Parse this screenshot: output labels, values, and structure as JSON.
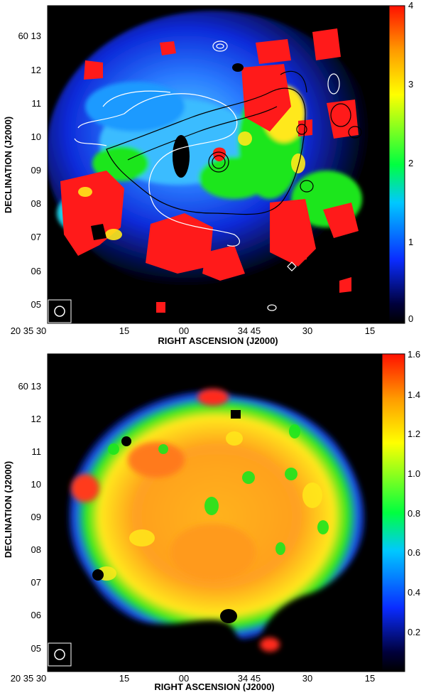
{
  "panels": [
    {
      "id": "top",
      "xlabel": "RIGHT ASCENSION (J2000)",
      "ylabel": "DECLINATION (J2000)",
      "x_ticks": [
        "20 35 30",
        "15",
        "00",
        "34 45",
        "30",
        "15"
      ],
      "y_ticks": [
        "60 13",
        "12",
        "11",
        "10",
        "09",
        "08",
        "07",
        "06",
        "05"
      ],
      "colorbar_ticks": [
        "4",
        "3",
        "2",
        "1",
        "0"
      ],
      "colormap": "rainbow",
      "contours": {
        "white": true,
        "black": true
      }
    },
    {
      "id": "bottom",
      "xlabel": "RIGHT ASCENSION (J2000)",
      "ylabel": "DECLINATION (J2000)",
      "x_ticks": [
        "20 35 30",
        "15",
        "00",
        "34 45",
        "30",
        "15"
      ],
      "y_ticks": [
        "60 13",
        "12",
        "11",
        "10",
        "09",
        "08",
        "07",
        "06",
        "05"
      ],
      "colorbar_ticks": [
        "1.6",
        "1.4",
        "1.2",
        "1.0",
        "0.8",
        "0.6",
        "0.4",
        "0.2"
      ],
      "colormap": "rainbow"
    }
  ],
  "colors": {
    "red": "#ff1a1a",
    "orange": "#ff8c1a",
    "yellow": "#ffe81a",
    "green": "#1ee61e",
    "cyan": "#1ecfe6",
    "blue": "#1a4dff",
    "dark": "#000000"
  }
}
